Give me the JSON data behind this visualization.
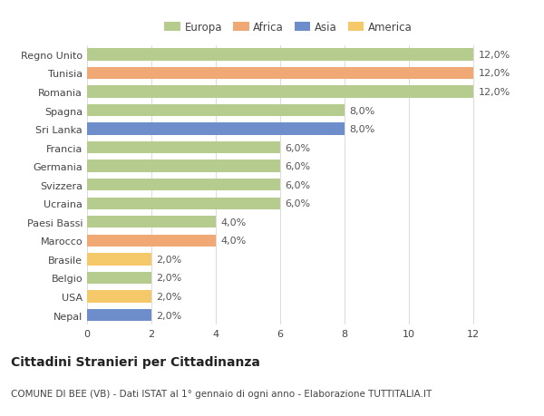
{
  "categories": [
    "Nepal",
    "USA",
    "Belgio",
    "Brasile",
    "Marocco",
    "Paesi Bassi",
    "Ucraina",
    "Svizzera",
    "Germania",
    "Francia",
    "Sri Lanka",
    "Spagna",
    "Romania",
    "Tunisia",
    "Regno Unito"
  ],
  "values": [
    2.0,
    2.0,
    2.0,
    2.0,
    4.0,
    4.0,
    6.0,
    6.0,
    6.0,
    6.0,
    8.0,
    8.0,
    12.0,
    12.0,
    12.0
  ],
  "colors": [
    "#6e8ecb",
    "#f5c96a",
    "#b5cc8e",
    "#f5c96a",
    "#f0a875",
    "#b5cc8e",
    "#b5cc8e",
    "#b5cc8e",
    "#b5cc8e",
    "#b5cc8e",
    "#6e8ecb",
    "#b5cc8e",
    "#b5cc8e",
    "#f0a875",
    "#b5cc8e"
  ],
  "continent": [
    "Asia",
    "America",
    "Europa",
    "America",
    "Africa",
    "Europa",
    "Europa",
    "Europa",
    "Europa",
    "Europa",
    "Asia",
    "Europa",
    "Europa",
    "Africa",
    "Europa"
  ],
  "legend_labels": [
    "Europa",
    "Africa",
    "Asia",
    "America"
  ],
  "legend_colors": [
    "#b5cc8e",
    "#f0a875",
    "#6e8ecb",
    "#f5c96a"
  ],
  "xlim": [
    0,
    12
  ],
  "xticks": [
    0,
    2,
    4,
    6,
    8,
    10,
    12
  ],
  "title": "Cittadini Stranieri per Cittadinanza",
  "subtitle": "COMUNE DI BEE (VB) - Dati ISTAT al 1° gennaio di ogni anno - Elaborazione TUTTITALIA.IT",
  "bg_color": "#ffffff",
  "bar_height": 0.65,
  "grid_color": "#dddddd",
  "label_fontsize": 8,
  "tick_fontsize": 8,
  "title_fontsize": 10,
  "subtitle_fontsize": 7.5
}
